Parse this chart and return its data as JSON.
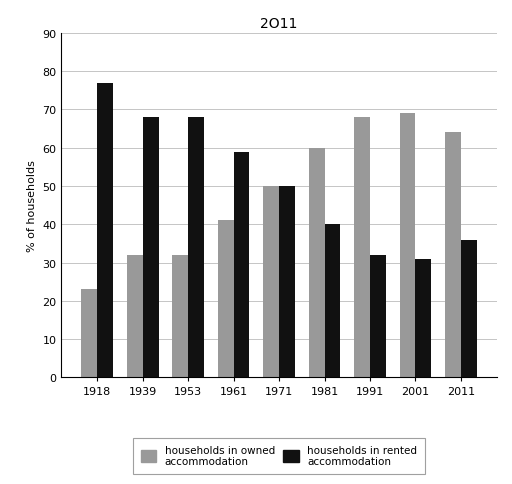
{
  "title": "2O11",
  "years": [
    "1918",
    "1939",
    "1953",
    "1961",
    "1971",
    "1981",
    "1991",
    "2001",
    "2011"
  ],
  "owned": [
    23,
    32,
    32,
    41,
    50,
    60,
    68,
    69,
    64
  ],
  "rented": [
    77,
    68,
    68,
    59,
    50,
    40,
    32,
    31,
    36
  ],
  "owned_color": "#999999",
  "rented_color": "#111111",
  "ylabel": "% of households",
  "ylim": [
    0,
    90
  ],
  "yticks": [
    0,
    10,
    20,
    30,
    40,
    50,
    60,
    70,
    80,
    90
  ],
  "legend_owned": "households in owned\naccommodation",
  "legend_rented": "households in rented\naccommodation",
  "bar_width": 0.35,
  "background_color": "#ffffff",
  "grid_color": "#bbbbbb",
  "title_fontsize": 10,
  "axis_fontsize": 8,
  "tick_fontsize": 8,
  "legend_fontsize": 7.5
}
